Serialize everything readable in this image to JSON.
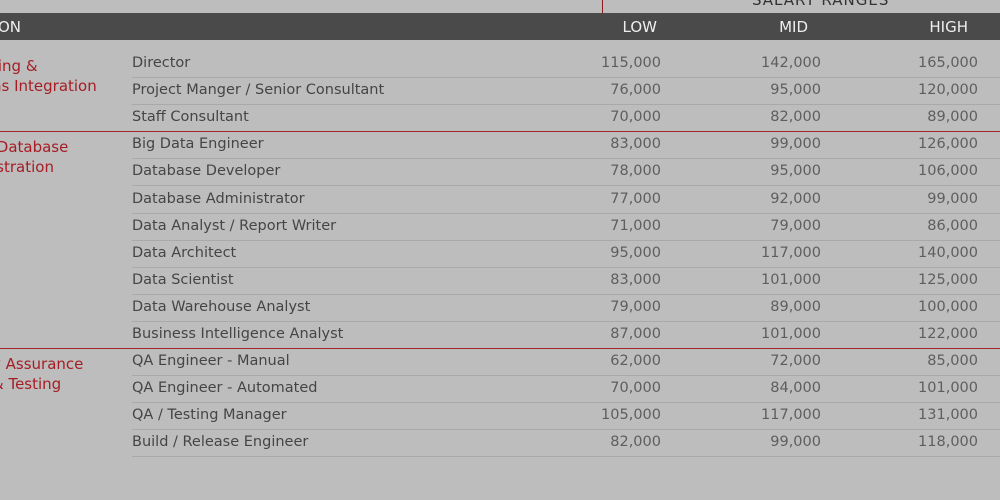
{
  "header": {
    "top_title": "SALARY RANGES",
    "position_col": "ON",
    "low": "LOW",
    "mid": "MID",
    "high": "HIGH"
  },
  "colors": {
    "accent": "#a51d24",
    "header_bg": "#4a4a4a",
    "background": "#bdbdbd"
  },
  "groups": [
    {
      "label": "ting &\nns Integration",
      "rows": [
        {
          "title": "Director",
          "low": "115,000",
          "mid": "142,000",
          "high": "165,000"
        },
        {
          "title": "Project Manger / Senior Consultant",
          "low": "76,000",
          "mid": "95,000",
          "high": "120,000"
        },
        {
          "title": "Staff Consultant",
          "low": "70,000",
          "mid": "82,000",
          "high": "89,000"
        }
      ]
    },
    {
      "label": " Database\nistration",
      "rows": [
        {
          "title": "Big Data Engineer",
          "low": "83,000",
          "mid": "99,000",
          "high": "126,000"
        },
        {
          "title": "Database Developer",
          "low": "78,000",
          "mid": "95,000",
          "high": "106,000"
        },
        {
          "title": "Database Administrator",
          "low": "77,000",
          "mid": "92,000",
          "high": "99,000"
        },
        {
          "title": "Data Analyst / Report Writer",
          "low": "71,000",
          "mid": "79,000",
          "high": "86,000"
        },
        {
          "title": "Data Architect",
          "low": "95,000",
          "mid": "117,000",
          "high": "140,000"
        },
        {
          "title": "Data Scientist",
          "low": "83,000",
          "mid": "101,000",
          "high": "125,000"
        },
        {
          "title": "Data Warehouse Analyst",
          "low": "79,000",
          "mid": "89,000",
          "high": "100,000"
        },
        {
          "title": "Business Intelligence Analyst",
          "low": "87,000",
          "mid": "101,000",
          "high": "122,000"
        }
      ]
    },
    {
      "label": "y Assurance\n& Testing",
      "rows": [
        {
          "title": "QA Engineer - Manual",
          "low": "62,000",
          "mid": "72,000",
          "high": "85,000"
        },
        {
          "title": "QA Engineer - Automated",
          "low": "70,000",
          "mid": "84,000",
          "high": "101,000"
        },
        {
          "title": "QA / Testing Manager",
          "low": "105,000",
          "mid": "117,000",
          "high": "131,000"
        },
        {
          "title": "Build / Release Engineer",
          "low": "82,000",
          "mid": "99,000",
          "high": "118,000"
        }
      ]
    }
  ]
}
